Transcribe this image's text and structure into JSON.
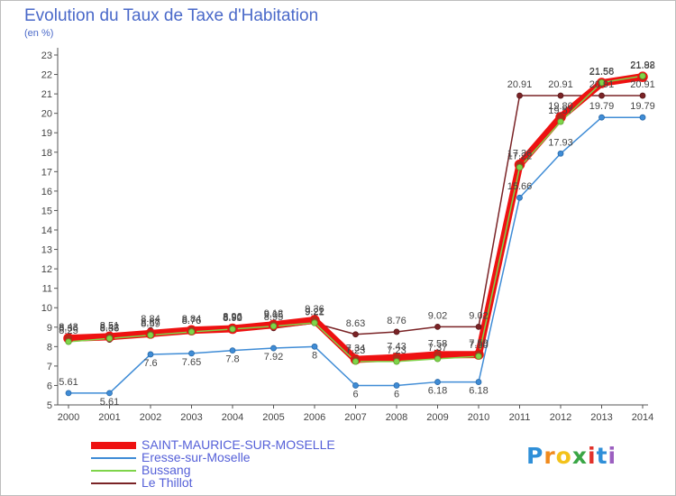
{
  "chart_data": {
    "type": "line",
    "title": "Evolution du Taux de Taxe d'Habitation",
    "ylabel": "(en %)",
    "xlabel": "",
    "x": [
      "2000",
      "2001",
      "2002",
      "2003",
      "2004",
      "2005",
      "2006",
      "2007",
      "2008",
      "2009",
      "2010",
      "2011",
      "2012",
      "2013",
      "2014"
    ],
    "ylim": [
      5,
      23
    ],
    "yticks": [
      5,
      6,
      7,
      8,
      9,
      10,
      11,
      12,
      13,
      14,
      15,
      16,
      17,
      18,
      19,
      20,
      21,
      22,
      23
    ],
    "grid": "none",
    "legend_position": "bottom-left",
    "series": [
      {
        "name": "SAINT-MAURICE-SUR-MOSELLE",
        "color": "#ee1111",
        "values": [
          8.43,
          8.51,
          8.67,
          8.84,
          8.92,
          9.12,
          9.36,
          7.34,
          7.43,
          7.58,
          7.59,
          17.36,
          19.8,
          21.56,
          21.88
        ],
        "labels": [
          "8.43",
          "8.51",
          "8.67",
          "8.84",
          "8.92",
          "9.12",
          "9.36",
          "7.34",
          "7.43",
          "7.58",
          "7.59",
          "17.36",
          "19.80",
          "21.56",
          "21.88"
        ]
      },
      {
        "name": "Eresse-sur-Moselle",
        "color": "#3f8cd6",
        "values": [
          5.61,
          5.61,
          7.6,
          7.65,
          7.8,
          7.92,
          8,
          6,
          6,
          6.18,
          6.18,
          15.66,
          17.93,
          19.79,
          19.79
        ],
        "labels": [
          "5.61",
          "5.61",
          "7.6",
          "7.65",
          "7.8",
          "7.92",
          "8",
          "6",
          "6",
          "6.18",
          "6.18",
          "15.66",
          "17.93",
          "19.79",
          "19.79"
        ]
      },
      {
        "name": "Bussang",
        "color": "#7fd44a",
        "values": [
          8.25,
          8.42,
          8.59,
          8.76,
          8.9,
          9.05,
          9.22,
          7.23,
          7.23,
          7.37,
          7.5,
          17.22,
          19.57,
          21.58,
          21.92
        ],
        "labels": [
          "8.25",
          "8.42",
          "8.59",
          "8.76",
          "8.90",
          "9.05",
          "9.22",
          "7.23",
          "7.23",
          "7.37",
          "7.50",
          "17.22",
          "19.57",
          "21.58",
          "21.92"
        ]
      },
      {
        "name": "Le Thillot",
        "color": "#7a2326",
        "values": [
          8.36,
          8.36,
          8.84,
          8.76,
          8.96,
          8.95,
          9.21,
          8.63,
          8.76,
          9.02,
          9.02,
          20.91,
          20.91,
          20.91,
          20.91
        ],
        "labels": [
          "8.36",
          "8.36",
          "8.84",
          "8.76",
          "8.96",
          "8.95",
          "9.21",
          "8.63",
          "8.76",
          "9.02",
          "9.02",
          "20.91",
          "20.91",
          "20.91",
          "20.91"
        ]
      }
    ]
  },
  "logo": {
    "letters": [
      "P",
      "r",
      "o",
      "x",
      "i",
      "t",
      "i"
    ],
    "colors": [
      "#2f8fd8",
      "#f08a1d",
      "#f3c21a",
      "#3aa645",
      "#e2322a",
      "#2f8fd8",
      "#9c5fc0"
    ]
  }
}
